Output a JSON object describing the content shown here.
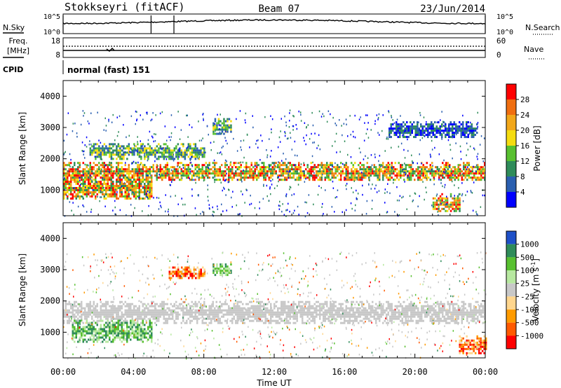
{
  "header": {
    "station": "Stokkseyri (fitACF)",
    "beam": "Beam 07",
    "date": "23/Jun/2014"
  },
  "side_labels": {
    "nsky": "N.Sky",
    "nsearch": "N.Search",
    "freq": "Freq.",
    "mhz": "[MHz]",
    "nave": "Nave",
    "cpid": "CPID",
    "cpid_value": "normal (fast) 151"
  },
  "noise_axis": {
    "left_top": "10^5",
    "left_bottom": "10^0",
    "right_top": "10^5",
    "right_bottom": "10^0"
  },
  "freq_axis": {
    "left_top": "18",
    "left_bottom": "8",
    "right_top": "60",
    "right_bottom": "0"
  },
  "colors": {
    "power": [
      "#0000ff",
      "#2a5fb0",
      "#2f8c5a",
      "#58c030",
      "#f5dc10",
      "#f2a71a",
      "#f06e10",
      "#ff0000"
    ],
    "velocity": [
      "#ff0000",
      "#ff5a00",
      "#ff9b00",
      "#ffd68e",
      "#c8c8c8",
      "#b7e8a0",
      "#58c030",
      "#2f8c5a",
      "#1e50c8"
    ],
    "ground_scatter": "#c8c8c8"
  },
  "chart_data": [
    {
      "type": "heatmap",
      "panel": "power",
      "ylabel": "Slant Range [km]",
      "y_ticks": [
        "1000",
        "2000",
        "3000",
        "4000"
      ],
      "ylim": [
        180,
        4500
      ],
      "xlim": [
        "00:00",
        "24:00"
      ],
      "x_ticks": [
        "00:00",
        "04:00",
        "08:00",
        "12:00",
        "16:00",
        "20:00",
        "00:00"
      ],
      "colorbar": {
        "label": "Power [dB]",
        "ticks": [
          "4",
          "8",
          "12",
          "16",
          "20",
          "24",
          "28"
        ]
      },
      "features": [
        {
          "time_start": 0.0,
          "time_end": 24.0,
          "range_start": 1300,
          "range_end": 1900,
          "level": "high"
        },
        {
          "time_start": 0.0,
          "time_end": 5.0,
          "range_start": 700,
          "range_end": 1500,
          "level": "high"
        },
        {
          "time_start": 1.5,
          "time_end": 8.0,
          "range_start": 2000,
          "range_end": 2500,
          "level": "medium"
        },
        {
          "time_start": 18.5,
          "time_end": 23.5,
          "range_start": 2700,
          "range_end": 3200,
          "level": "low"
        },
        {
          "time_start": 21.0,
          "time_end": 22.5,
          "range_start": 300,
          "range_end": 900,
          "level": "high"
        },
        {
          "time_start": 8.5,
          "time_end": 9.5,
          "range_start": 2800,
          "range_end": 3300,
          "level": "medium"
        }
      ]
    },
    {
      "type": "heatmap",
      "panel": "velocity",
      "ylabel": "Slant Range [km]",
      "y_ticks": [
        "1000",
        "2000",
        "3000",
        "4000"
      ],
      "ylim": [
        180,
        4500
      ],
      "xlim": [
        "00:00",
        "24:00"
      ],
      "x_ticks": [
        "00:00",
        "04:00",
        "08:00",
        "12:00",
        "16:00",
        "20:00",
        "00:00"
      ],
      "xlabel": "Time UT",
      "colorbar": {
        "label": "Velocity [m s^-1]",
        "ticks": [
          "1000",
          "500",
          "100",
          "25",
          "-25",
          "-100",
          "-500",
          "-1000"
        ]
      },
      "features": [
        {
          "time_start": 0.0,
          "time_end": 24.0,
          "range_start": 1300,
          "range_end": 2000,
          "class": "ground"
        },
        {
          "time_start": 0.5,
          "time_end": 5.0,
          "range_start": 700,
          "range_end": 1400,
          "class": "positive"
        },
        {
          "time_start": 6.0,
          "time_end": 8.0,
          "range_start": 2700,
          "range_end": 3100,
          "class": "negative"
        },
        {
          "time_start": 8.5,
          "time_end": 9.5,
          "range_start": 2800,
          "range_end": 3200,
          "class": "positive"
        },
        {
          "time_start": 22.5,
          "time_end": 24.0,
          "range_start": 300,
          "range_end": 900,
          "class": "negative"
        }
      ]
    }
  ],
  "axes": {
    "xlabel": "Time UT"
  }
}
